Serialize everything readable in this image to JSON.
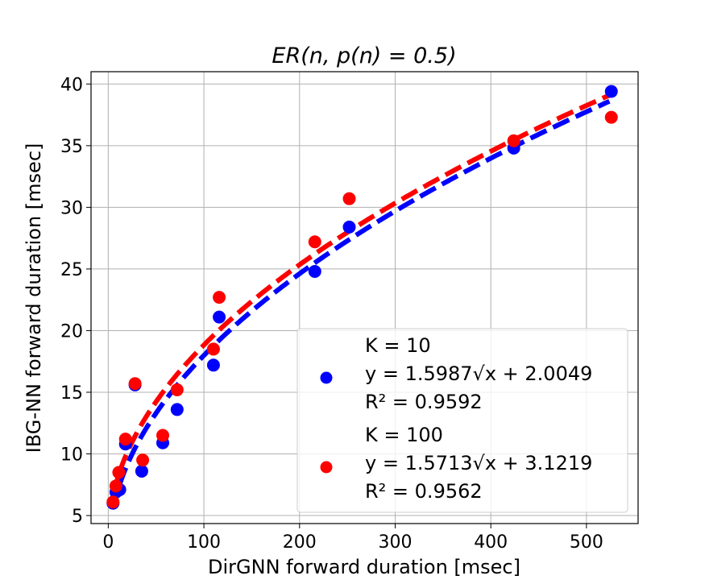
{
  "chart_data": {
    "type": "scatter",
    "title": "ER(n, p(n) = 0.5)",
    "xlabel": "DirGNN forward duration [msec]",
    "ylabel": "IBG-NN forward duration [msec]",
    "xlim": [
      -18,
      554
    ],
    "ylim": [
      4.35,
      41
    ],
    "xticks": [
      0,
      100,
      200,
      300,
      400,
      500
    ],
    "yticks": [
      5,
      10,
      15,
      20,
      25,
      30,
      35,
      40
    ],
    "grid": true,
    "legend_position": "lower-right",
    "series": [
      {
        "name": "K = 10",
        "color": "#0000ff",
        "fit_label": "y = 1.5987√x + 2.0049",
        "r2_label": "R² = 0.9592",
        "a": 1.5987,
        "b": 2.0049,
        "x": [
          5,
          8,
          12,
          18,
          28,
          35,
          57,
          72,
          110,
          116,
          216,
          252,
          424,
          526
        ],
        "y": [
          6.0,
          6.9,
          7.1,
          10.8,
          15.6,
          8.6,
          10.9,
          13.6,
          17.2,
          21.1,
          24.8,
          28.4,
          34.8,
          39.4
        ]
      },
      {
        "name": "K = 100",
        "color": "#ff0000",
        "fit_label": "y = 1.5713√x + 3.1219",
        "r2_label": "R² = 0.9562",
        "a": 1.5713,
        "b": 3.1219,
        "x": [
          5,
          8,
          11,
          18,
          28,
          36,
          57,
          72,
          110,
          116,
          216,
          252,
          424,
          526
        ],
        "y": [
          6.1,
          7.4,
          8.5,
          11.2,
          15.7,
          9.5,
          11.5,
          15.2,
          18.5,
          22.7,
          27.2,
          30.7,
          35.4,
          37.3
        ]
      }
    ]
  }
}
